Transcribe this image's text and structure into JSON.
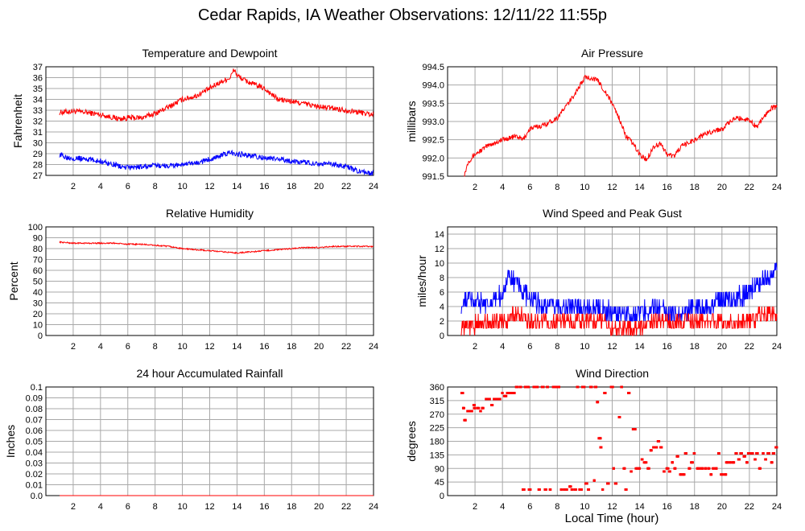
{
  "page": {
    "title": "Cedar Rapids, IA Weather Observations: 12/11/22 11:55p",
    "x_axis_label": "Local Time (hour)"
  },
  "colors": {
    "red": "#ff0000",
    "blue": "#0000ff",
    "grid": "#a8a8a8",
    "frame": "#000000"
  },
  "chart_data": [
    {
      "id": "temp",
      "type": "line",
      "title": "Temperature and Dewpoint",
      "ylabel": "Fahrenheit",
      "xlim": [
        0,
        24
      ],
      "ylim": [
        27,
        37
      ],
      "xticks": [
        2,
        4,
        6,
        8,
        10,
        12,
        14,
        16,
        18,
        20,
        22,
        24
      ],
      "yticks": [
        27,
        28,
        29,
        30,
        31,
        32,
        33,
        34,
        35,
        36,
        37
      ],
      "series": [
        {
          "color": "#ff0000",
          "x": [
            1,
            2,
            3,
            4,
            5,
            5.5,
            6,
            7,
            8,
            9,
            10,
            11,
            12,
            12.5,
            13,
            13.5,
            13.8,
            14,
            14.5,
            15,
            16,
            17,
            18,
            19,
            20,
            21,
            22,
            23,
            24
          ],
          "y": [
            32.8,
            32.9,
            32.8,
            32.6,
            32.3,
            32.2,
            32.3,
            32.3,
            32.7,
            33.3,
            34.0,
            34.3,
            35.0,
            35.4,
            35.7,
            36.0,
            36.8,
            36.2,
            35.8,
            35.5,
            35.0,
            34.0,
            33.8,
            33.6,
            33.3,
            33.2,
            33.0,
            32.8,
            32.6
          ],
          "noise": 0.25
        },
        {
          "color": "#0000ff",
          "x": [
            1,
            1.5,
            2,
            3,
            4,
            5,
            5.5,
            6,
            7,
            8,
            9,
            10,
            11,
            12,
            13,
            13.5,
            14,
            15,
            16,
            17,
            18,
            19,
            20,
            21,
            22,
            23,
            24
          ],
          "y": [
            28.9,
            28.7,
            28.6,
            28.5,
            28.3,
            28.0,
            27.8,
            27.7,
            27.8,
            27.9,
            27.9,
            28.0,
            28.1,
            28.5,
            28.9,
            29.1,
            29.0,
            28.8,
            28.6,
            28.5,
            28.3,
            28.2,
            28.1,
            28.0,
            27.8,
            27.3,
            27.2
          ],
          "noise": 0.25
        }
      ]
    },
    {
      "id": "pressure",
      "type": "line",
      "title": "Air Pressure",
      "ylabel": "millibars",
      "xlim": [
        0,
        24
      ],
      "ylim": [
        991.5,
        994.5
      ],
      "xticks": [
        2,
        4,
        6,
        8,
        10,
        12,
        14,
        16,
        18,
        20,
        22,
        24
      ],
      "yticks": [
        991.5,
        992.0,
        992.5,
        993.0,
        993.5,
        994.0,
        994.5
      ],
      "ytick_labels": [
        "991.5",
        "992.0",
        "992.5",
        "993.0",
        "993.5",
        "994.0",
        "994.5"
      ],
      "series": [
        {
          "color": "#ff0000",
          "x": [
            1.2,
            1.5,
            2,
            3,
            4,
            5,
            5.5,
            6,
            7,
            8,
            9,
            9.5,
            10,
            10.5,
            11,
            11.5,
            12,
            12.5,
            13,
            13.5,
            14,
            14.5,
            15,
            15.5,
            16,
            16.5,
            17,
            18,
            19,
            20,
            21,
            22,
            22.5,
            23,
            23.5,
            24
          ],
          "y": [
            991.5,
            991.9,
            992.1,
            992.35,
            992.5,
            992.6,
            992.5,
            992.8,
            992.9,
            993.1,
            993.6,
            993.9,
            994.2,
            994.2,
            994.1,
            993.8,
            993.5,
            993.1,
            992.6,
            992.4,
            992.1,
            991.95,
            992.3,
            992.4,
            992.1,
            992.05,
            992.3,
            992.5,
            992.7,
            992.8,
            993.1,
            993.05,
            992.85,
            993.1,
            993.35,
            993.4
          ],
          "noise": 0.07
        }
      ]
    },
    {
      "id": "humidity",
      "type": "line",
      "title": "Relative Humidity",
      "ylabel": "Percent",
      "xlim": [
        0,
        24
      ],
      "ylim": [
        0,
        100
      ],
      "xticks": [
        2,
        4,
        6,
        8,
        10,
        12,
        14,
        16,
        18,
        20,
        22,
        24
      ],
      "yticks": [
        0,
        10,
        20,
        30,
        40,
        50,
        60,
        70,
        80,
        90,
        100
      ],
      "series": [
        {
          "color": "#ff0000",
          "x": [
            1,
            2,
            3,
            4,
            5,
            6,
            7,
            8,
            9,
            10,
            11,
            12,
            13,
            14,
            15,
            16,
            17,
            18,
            19,
            20,
            21,
            22,
            23,
            24
          ],
          "y": [
            86,
            85,
            85,
            85,
            85,
            84,
            84,
            83,
            82,
            80,
            79,
            78,
            77,
            76,
            77,
            78,
            79,
            80,
            81,
            81,
            82,
            82,
            82,
            82
          ],
          "noise": 0.6
        }
      ]
    },
    {
      "id": "wind",
      "type": "line",
      "title": "Wind Speed and Peak Gust",
      "ylabel": "miles/hour",
      "xlim": [
        0,
        24
      ],
      "ylim": [
        0,
        15
      ],
      "xticks": [
        2,
        4,
        6,
        8,
        10,
        12,
        14,
        16,
        18,
        20,
        22,
        24
      ],
      "yticks": [
        0,
        2,
        4,
        6,
        8,
        10,
        12,
        14
      ],
      "series": [
        {
          "color": "#0000ff",
          "x": [
            1,
            1.5,
            2,
            3,
            4,
            4.5,
            5,
            6,
            7,
            8,
            9,
            10,
            11,
            12,
            13,
            14,
            15,
            16,
            17,
            18,
            19,
            20,
            21,
            22,
            22.5,
            23,
            23.5,
            24
          ],
          "y": [
            4,
            5,
            5,
            4,
            6,
            8,
            7,
            5,
            4,
            4,
            4,
            4,
            4,
            3,
            3,
            3,
            4,
            3,
            3,
            4,
            4,
            5,
            5,
            6,
            7,
            8,
            8,
            9
          ],
          "noise": 1.4
        },
        {
          "color": "#ff0000",
          "x": [
            1,
            2,
            3,
            4,
            5,
            6,
            7,
            8,
            9,
            10,
            11,
            12,
            13,
            14,
            15,
            16,
            17,
            18,
            19,
            20,
            21,
            22,
            23,
            24
          ],
          "y": [
            1,
            1.5,
            2,
            2,
            3,
            2,
            2,
            2,
            2,
            2,
            2,
            1,
            1,
            1,
            2,
            2,
            2,
            2,
            2,
            2,
            2,
            2,
            3,
            3
          ],
          "noise": 1.1
        }
      ]
    },
    {
      "id": "rain",
      "type": "line",
      "title": "24 hour Accumulated Rainfall",
      "ylabel": "Inches",
      "xlim": [
        0,
        24
      ],
      "ylim": [
        0,
        0.1
      ],
      "xticks": [
        2,
        4,
        6,
        8,
        10,
        12,
        14,
        16,
        18,
        20,
        22,
        24
      ],
      "yticks": [
        0,
        0.01,
        0.02,
        0.03,
        0.04,
        0.05,
        0.06,
        0.07,
        0.08,
        0.09,
        0.1
      ],
      "ytick_labels": [
        "0.0",
        "0.01",
        "0.02",
        "0.03",
        "0.04",
        "0.05",
        "0.06",
        "0.07",
        "0.08",
        "0.09",
        "0.1"
      ],
      "series": [
        {
          "color": "#ff0000",
          "x": [
            1,
            24
          ],
          "y": [
            0,
            0
          ],
          "noise": 0
        }
      ]
    },
    {
      "id": "direction",
      "type": "scatter",
      "title": "Wind Direction",
      "ylabel": "degrees",
      "xlim": [
        0,
        24
      ],
      "ylim": [
        0,
        360
      ],
      "xticks": [
        2,
        4,
        6,
        8,
        10,
        12,
        14,
        16,
        18,
        20,
        22,
        24
      ],
      "yticks": [
        0,
        45,
        90,
        135,
        180,
        225,
        270,
        315,
        360
      ],
      "series": [
        {
          "color": "#ff0000",
          "points": [
            [
              1.1,
              340
            ],
            [
              1.2,
              290
            ],
            [
              1.3,
              250
            ],
            [
              1.5,
              280
            ],
            [
              1.7,
              280
            ],
            [
              1.9,
              300
            ],
            [
              2.0,
              290
            ],
            [
              2.2,
              290
            ],
            [
              2.4,
              280
            ],
            [
              2.6,
              290
            ],
            [
              2.8,
              320
            ],
            [
              3.0,
              320
            ],
            [
              3.2,
              300
            ],
            [
              3.4,
              320
            ],
            [
              3.6,
              320
            ],
            [
              3.8,
              320
            ],
            [
              4.0,
              340
            ],
            [
              4.2,
              330
            ],
            [
              4.4,
              340
            ],
            [
              4.6,
              340
            ],
            [
              4.8,
              340
            ],
            [
              5.0,
              360
            ],
            [
              5.3,
              360
            ],
            [
              5.5,
              20
            ],
            [
              5.7,
              360
            ],
            [
              5.9,
              360
            ],
            [
              6.0,
              20
            ],
            [
              6.3,
              360
            ],
            [
              6.5,
              360
            ],
            [
              6.7,
              20
            ],
            [
              6.9,
              360
            ],
            [
              7.1,
              20
            ],
            [
              7.3,
              360
            ],
            [
              7.5,
              20
            ],
            [
              7.7,
              360
            ],
            [
              7.9,
              360
            ],
            [
              8.1,
              360
            ],
            [
              8.3,
              20
            ],
            [
              8.5,
              20
            ],
            [
              8.7,
              20
            ],
            [
              8.9,
              30
            ],
            [
              9.1,
              20
            ],
            [
              9.3,
              20
            ],
            [
              9.5,
              360
            ],
            [
              9.7,
              20
            ],
            [
              9.9,
              360
            ],
            [
              10.1,
              40
            ],
            [
              10.3,
              20
            ],
            [
              10.5,
              360
            ],
            [
              10.7,
              50
            ],
            [
              10.8,
              360
            ],
            [
              10.9,
              310
            ],
            [
              11.1,
              190
            ],
            [
              11.2,
              160
            ],
            [
              11.3,
              20
            ],
            [
              11.5,
              340
            ],
            [
              11.7,
              40
            ],
            [
              12.0,
              360
            ],
            [
              12.1,
              90
            ],
            [
              12.3,
              40
            ],
            [
              12.5,
              260
            ],
            [
              12.7,
              360
            ],
            [
              12.9,
              90
            ],
            [
              13.0,
              20
            ],
            [
              13.2,
              340
            ],
            [
              13.4,
              80
            ],
            [
              13.6,
              220
            ],
            [
              13.8,
              90
            ],
            [
              14.0,
              90
            ],
            [
              14.2,
              120
            ],
            [
              14.4,
              110
            ],
            [
              14.6,
              90
            ],
            [
              14.8,
              150
            ],
            [
              15.0,
              160
            ],
            [
              15.2,
              160
            ],
            [
              15.4,
              180
            ],
            [
              15.6,
              160
            ],
            [
              15.8,
              80
            ],
            [
              16.0,
              90
            ],
            [
              16.2,
              80
            ],
            [
              16.4,
              110
            ],
            [
              16.6,
              90
            ],
            [
              16.8,
              130
            ],
            [
              17.0,
              70
            ],
            [
              17.2,
              70
            ],
            [
              17.4,
              140
            ],
            [
              17.6,
              90
            ],
            [
              17.8,
              110
            ],
            [
              18.0,
              140
            ],
            [
              18.2,
              90
            ],
            [
              18.4,
              90
            ],
            [
              18.6,
              90
            ],
            [
              18.8,
              90
            ],
            [
              19.0,
              90
            ],
            [
              19.2,
              70
            ],
            [
              19.4,
              90
            ],
            [
              19.6,
              90
            ],
            [
              19.8,
              140
            ],
            [
              20.0,
              70
            ],
            [
              20.2,
              70
            ],
            [
              20.4,
              110
            ],
            [
              20.6,
              110
            ],
            [
              20.8,
              110
            ],
            [
              21.0,
              140
            ],
            [
              21.2,
              120
            ],
            [
              21.4,
              140
            ],
            [
              21.6,
              130
            ],
            [
              21.8,
              110
            ],
            [
              22.0,
              140
            ],
            [
              22.2,
              140
            ],
            [
              22.4,
              120
            ],
            [
              22.6,
              140
            ],
            [
              22.8,
              90
            ],
            [
              23.0,
              140
            ],
            [
              23.2,
              120
            ],
            [
              23.4,
              140
            ],
            [
              23.6,
              110
            ],
            [
              23.8,
              140
            ],
            [
              24.0,
              160
            ]
          ]
        }
      ]
    }
  ]
}
